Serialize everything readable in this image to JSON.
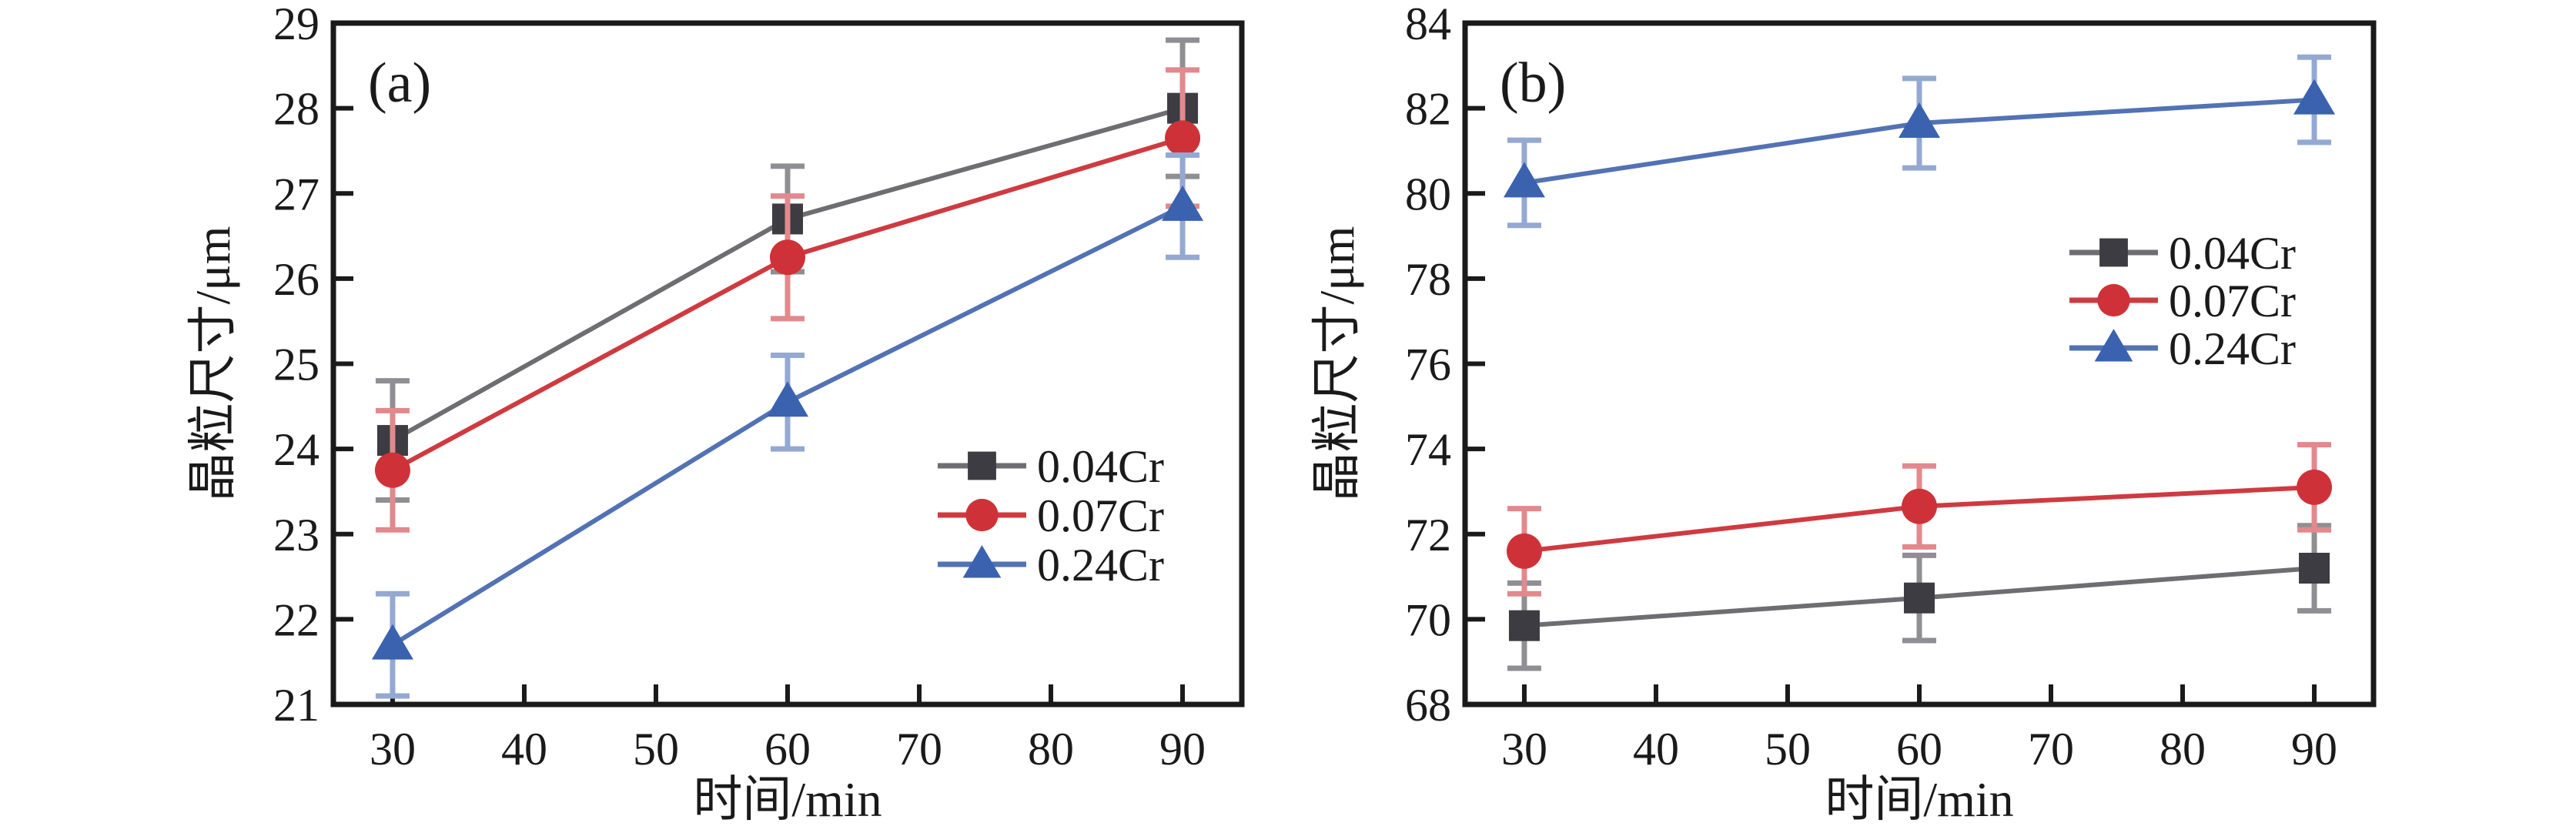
{
  "figure": {
    "background": "#ffffff",
    "axis_color": "#1a1a1a"
  },
  "chart_data": [
    {
      "panel_label": "(a)",
      "type": "line",
      "x": [
        30,
        60,
        90
      ],
      "xlabel": "时间/min",
      "ylabel": "晶粒尺寸/μm",
      "xlim": [
        25.5,
        94.5
      ],
      "ylim": [
        21,
        29
      ],
      "xticks": [
        30,
        40,
        50,
        60,
        70,
        80,
        90
      ],
      "yticks": [
        21,
        22,
        23,
        24,
        25,
        26,
        27,
        28,
        29
      ],
      "grid": false,
      "legend_position": "center-right",
      "series": [
        {
          "name": "0.04Cr",
          "marker": "square",
          "marker_color": "#3c3c42",
          "line_color": "#6e6e72",
          "error_color": "#8f8f93",
          "values": [
            24.1,
            26.7,
            28.0
          ],
          "errors": [
            0.7,
            0.62,
            0.8
          ]
        },
        {
          "name": "0.07Cr",
          "marker": "circle",
          "marker_color": "#ce3238",
          "line_color": "#cf3a40",
          "error_color": "#e2898d",
          "values": [
            23.75,
            26.25,
            27.65
          ],
          "errors": [
            0.7,
            0.72,
            0.8
          ]
        },
        {
          "name": "0.24Cr",
          "marker": "triangle",
          "marker_color": "#3a62ae",
          "line_color": "#5272b4",
          "error_color": "#94a9d2",
          "values": [
            21.7,
            24.55,
            26.85
          ],
          "errors": [
            0.6,
            0.55,
            0.6
          ]
        }
      ]
    },
    {
      "panel_label": "(b)",
      "type": "line",
      "x": [
        30,
        60,
        90
      ],
      "xlabel": "时间/min",
      "ylabel": "晶粒尺寸/μm",
      "xlim": [
        25.5,
        94.5
      ],
      "ylim": [
        68,
        84
      ],
      "xticks": [
        30,
        40,
        50,
        60,
        70,
        80,
        90
      ],
      "yticks": [
        68,
        70,
        72,
        74,
        76,
        78,
        80,
        82,
        84
      ],
      "grid": false,
      "legend_position": "upper-right",
      "series": [
        {
          "name": "0.04Cr",
          "marker": "square",
          "marker_color": "#3c3c42",
          "line_color": "#6e6e72",
          "error_color": "#8f8f93",
          "values": [
            69.85,
            70.5,
            71.2
          ],
          "errors": [
            1.0,
            1.0,
            1.0
          ]
        },
        {
          "name": "0.07Cr",
          "marker": "circle",
          "marker_color": "#ce3238",
          "line_color": "#cf3a40",
          "error_color": "#e2898d",
          "values": [
            71.6,
            72.65,
            73.1
          ],
          "errors": [
            1.0,
            0.95,
            1.0
          ]
        },
        {
          "name": "0.24Cr",
          "marker": "triangle",
          "marker_color": "#3a62ae",
          "line_color": "#5272b4",
          "error_color": "#94a9d2",
          "values": [
            80.25,
            81.65,
            82.2
          ],
          "errors": [
            1.0,
            1.05,
            1.0
          ]
        }
      ]
    }
  ]
}
